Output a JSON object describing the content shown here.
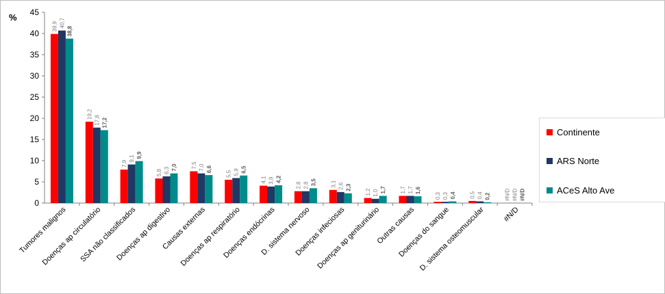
{
  "chart_data": {
    "type": "bar",
    "ylabel": "%",
    "ylim": [
      0,
      45
    ],
    "yticks": [
      "0",
      "5",
      "10",
      "15",
      "20",
      "25",
      "30",
      "35",
      "40",
      "45"
    ],
    "categories": [
      "Tumores malignos",
      "Doenças ap circulatório",
      "SSA não classificados",
      "Doenças ap digestivo",
      "Causas externas",
      "Doenças ap respiratório",
      "Doenças endócrinas",
      "D. sistema nervoso",
      "Doenças infeciosas",
      "Doenças ap geniturinário",
      "Outras causas",
      "Doenças do sangue",
      "D. sistema osteomuscular",
      "#N/D"
    ],
    "series": [
      {
        "name": "Continente",
        "color": "#ff0000",
        "values": [
          39.9,
          19.2,
          7.9,
          5.8,
          7.5,
          5.5,
          4.1,
          2.8,
          3.1,
          1.2,
          1.7,
          0.3,
          0.5,
          null
        ],
        "labels": [
          "39,9",
          "19,2",
          "7,9",
          "5,8",
          "7,5",
          "5,5",
          "4,1",
          "2,8",
          "3,1",
          "1,2",
          "1,7",
          "0,3",
          "0,5",
          "#N/D"
        ]
      },
      {
        "name": "ARS Norte",
        "color": "#1f3864",
        "values": [
          40.7,
          17.8,
          9.1,
          6.3,
          7.0,
          5.9,
          3.9,
          2.8,
          2.6,
          1.0,
          1.7,
          0.3,
          0.4,
          null
        ],
        "labels": [
          "40,7",
          "17,8",
          "9,1",
          "6,3",
          "7,0",
          "5,9",
          "3,9",
          "2,8",
          "2,6",
          "1,0",
          "1,7",
          "0,3",
          "0,4",
          "#N/D"
        ]
      },
      {
        "name": "ACeS Alto Ave",
        "color": "#008b8b",
        "values": [
          38.8,
          17.2,
          9.9,
          7.0,
          6.6,
          6.5,
          4.2,
          3.5,
          2.3,
          1.7,
          1.6,
          0.4,
          0.2,
          null
        ],
        "labels": [
          "38,8",
          "17,2",
          "9,9",
          "7,0",
          "6,6",
          "6,5",
          "4,2",
          "3,5",
          "2,3",
          "1,7",
          "1,6",
          "0,4",
          "0,2",
          "#N/D"
        ]
      }
    ],
    "legend_position": "right",
    "grid": false
  }
}
